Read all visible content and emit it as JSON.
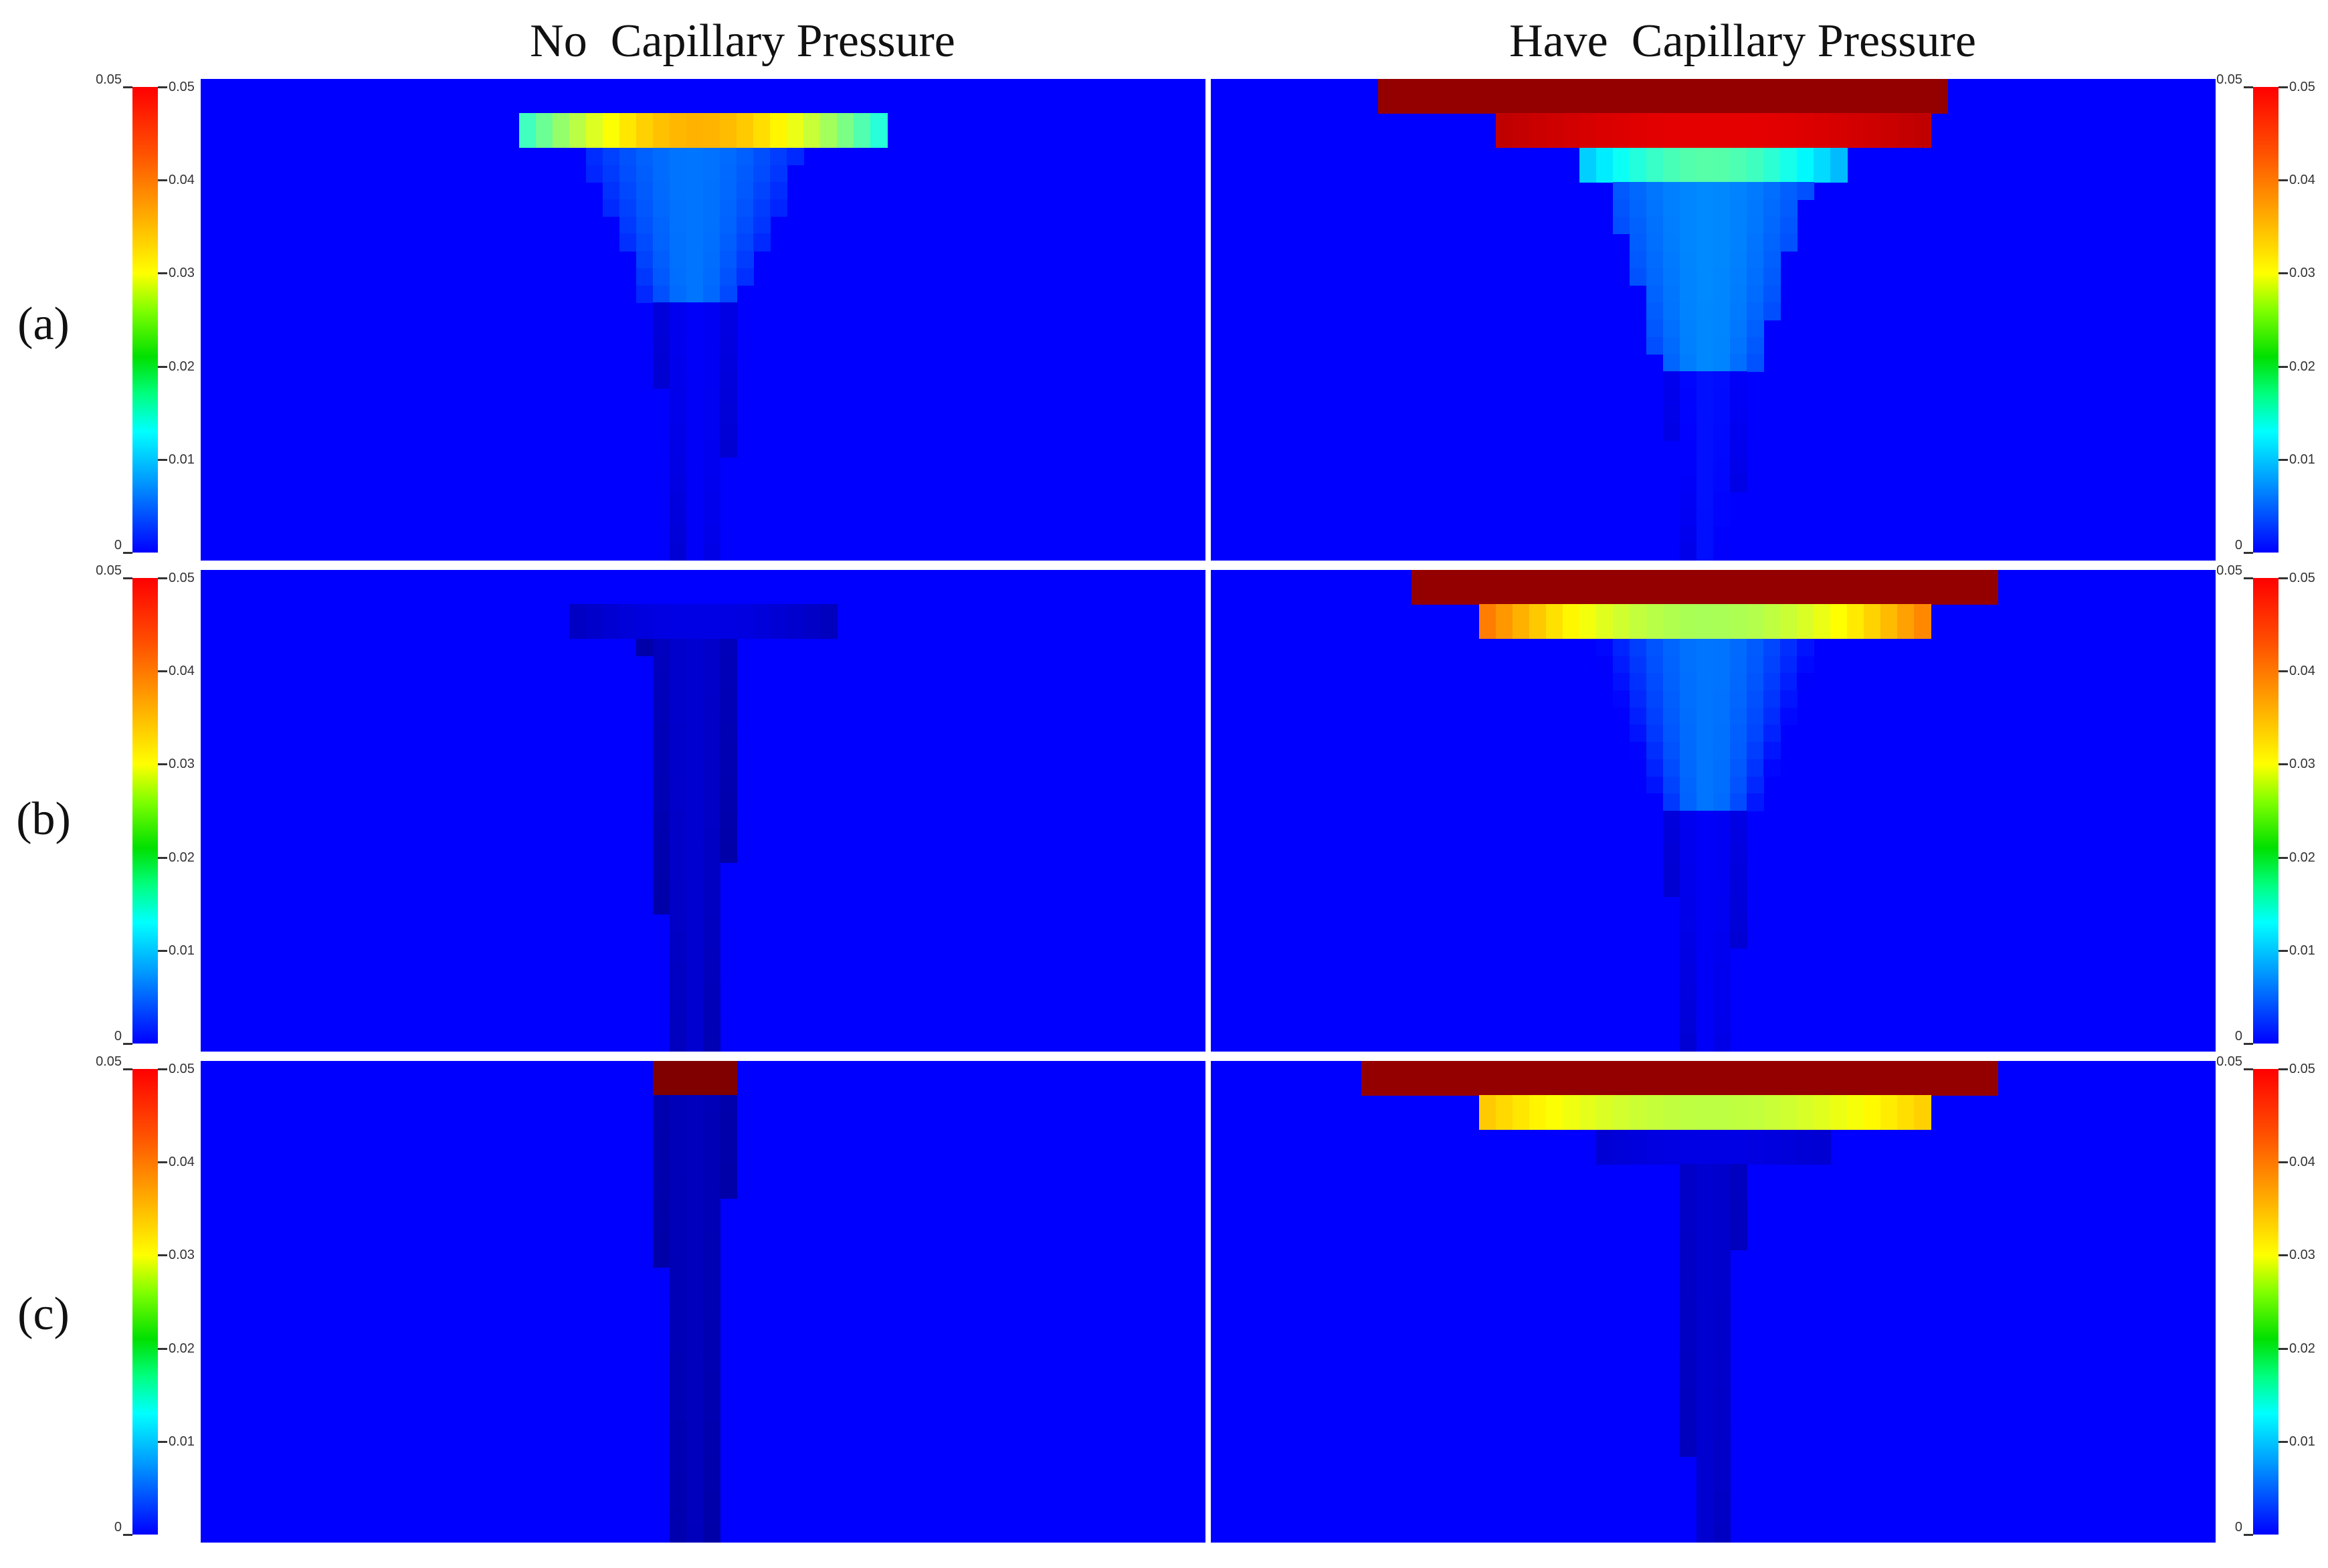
{
  "columns": [
    {
      "title": "No  Capillary Pressure"
    },
    {
      "title": "Have  Capillary Pressure"
    }
  ],
  "rows": [
    {
      "label": "(a)"
    },
    {
      "label": "(b)"
    },
    {
      "label": "(c)"
    }
  ],
  "colorbar": {
    "min": 0,
    "max": 0.05,
    "ticks": [
      0.01,
      0.02,
      0.03,
      0.04,
      0.05
    ],
    "tick_labels": [
      "0.01",
      "0.02",
      "0.03",
      "0.04",
      "0.05"
    ],
    "end_labels": [
      "0",
      "0.05"
    ],
    "colormap": "jet",
    "colors": [
      "#0000ff",
      "#00a0ff",
      "#00ffff",
      "#00ff80",
      "#00e000",
      "#80ff00",
      "#ffff00",
      "#ffa000",
      "#ff5000",
      "#ff0000"
    ]
  },
  "chart_data": {
    "type": "heatmap",
    "panels": [
      {
        "row": 0,
        "col": 0,
        "blobs": [
          {
            "r0": 0.065,
            "r1": 0.135,
            "c0": 0.31,
            "c1": 0.68,
            "v": 0.02,
            "peak": 0.035,
            "profile": "hump"
          },
          {
            "r0": 0.14,
            "r1": 0.45,
            "c0": 0.38,
            "c1": 0.6,
            "v": 0.008,
            "peak": 0.012,
            "profile": "cone"
          },
          {
            "r0": 0.45,
            "r1": 1.0,
            "c0": 0.45,
            "c1": 0.54,
            "v": 0.004,
            "peak": 0.006,
            "profile": "cone"
          }
        ]
      },
      {
        "row": 0,
        "col": 1,
        "blobs": [
          {
            "r0": 0.0,
            "r1": 0.07,
            "c0": 0.165,
            "c1": 0.735,
            "v": 0.049,
            "peak": 0.05,
            "profile": "flat"
          },
          {
            "r0": 0.07,
            "r1": 0.135,
            "c0": 0.28,
            "c1": 0.72,
            "v": 0.047,
            "peak": 0.045,
            "profile": "hump"
          },
          {
            "r0": 0.135,
            "r1": 0.2,
            "c0": 0.36,
            "c1": 0.63,
            "v": 0.015,
            "peak": 0.023,
            "profile": "hump"
          },
          {
            "r0": 0.2,
            "r1": 0.6,
            "c0": 0.39,
            "c1": 0.6,
            "v": 0.01,
            "peak": 0.013,
            "profile": "cone"
          },
          {
            "r0": 0.6,
            "r1": 1.0,
            "c0": 0.45,
            "c1": 0.54,
            "v": 0.005,
            "peak": 0.007,
            "profile": "cone"
          }
        ]
      },
      {
        "row": 1,
        "col": 0,
        "blobs": [
          {
            "r0": 0.065,
            "r1": 0.13,
            "c0": 0.36,
            "c1": 0.63,
            "v": 0.003,
            "peak": 0.005,
            "profile": "hump"
          },
          {
            "r0": 0.13,
            "r1": 1.0,
            "c0": 0.44,
            "c1": 0.54,
            "v": 0.002,
            "peak": 0.004,
            "profile": "cone"
          }
        ]
      },
      {
        "row": 1,
        "col": 1,
        "blobs": [
          {
            "r0": 0.0,
            "r1": 0.07,
            "c0": 0.2,
            "c1": 0.775,
            "v": 0.049,
            "peak": 0.05,
            "profile": "flat"
          },
          {
            "r0": 0.07,
            "r1": 0.135,
            "c0": 0.27,
            "c1": 0.72,
            "v": 0.038,
            "peak": 0.027,
            "profile": "hump"
          },
          {
            "r0": 0.135,
            "r1": 0.5,
            "c0": 0.38,
            "c1": 0.61,
            "v": 0.006,
            "peak": 0.012,
            "profile": "cone"
          },
          {
            "r0": 0.5,
            "r1": 1.0,
            "c0": 0.45,
            "c1": 0.54,
            "v": 0.004,
            "peak": 0.006,
            "profile": "cone"
          }
        ]
      },
      {
        "row": 2,
        "col": 0,
        "blobs": [
          {
            "r0": 0.0,
            "r1": 0.07,
            "c0": 0.45,
            "c1": 0.54,
            "v": 0.05,
            "peak": 0.05,
            "profile": "flat"
          },
          {
            "r0": 0.07,
            "r1": 1.0,
            "c0": 0.45,
            "c1": 0.53,
            "v": 0.002,
            "peak": 0.003,
            "profile": "cone"
          }
        ]
      },
      {
        "row": 2,
        "col": 1,
        "blobs": [
          {
            "r0": 0.0,
            "r1": 0.07,
            "c0": 0.15,
            "c1": 0.79,
            "v": 0.049,
            "peak": 0.05,
            "profile": "flat"
          },
          {
            "r0": 0.07,
            "r1": 0.135,
            "c0": 0.27,
            "c1": 0.72,
            "v": 0.034,
            "peak": 0.028,
            "profile": "hump"
          },
          {
            "r0": 0.135,
            "r1": 0.2,
            "c0": 0.38,
            "c1": 0.61,
            "v": 0.004,
            "peak": 0.005,
            "profile": "hump"
          },
          {
            "r0": 0.2,
            "r1": 1.0,
            "c0": 0.46,
            "c1": 0.53,
            "v": 0.003,
            "peak": 0.004,
            "profile": "cone"
          }
        ]
      }
    ]
  }
}
